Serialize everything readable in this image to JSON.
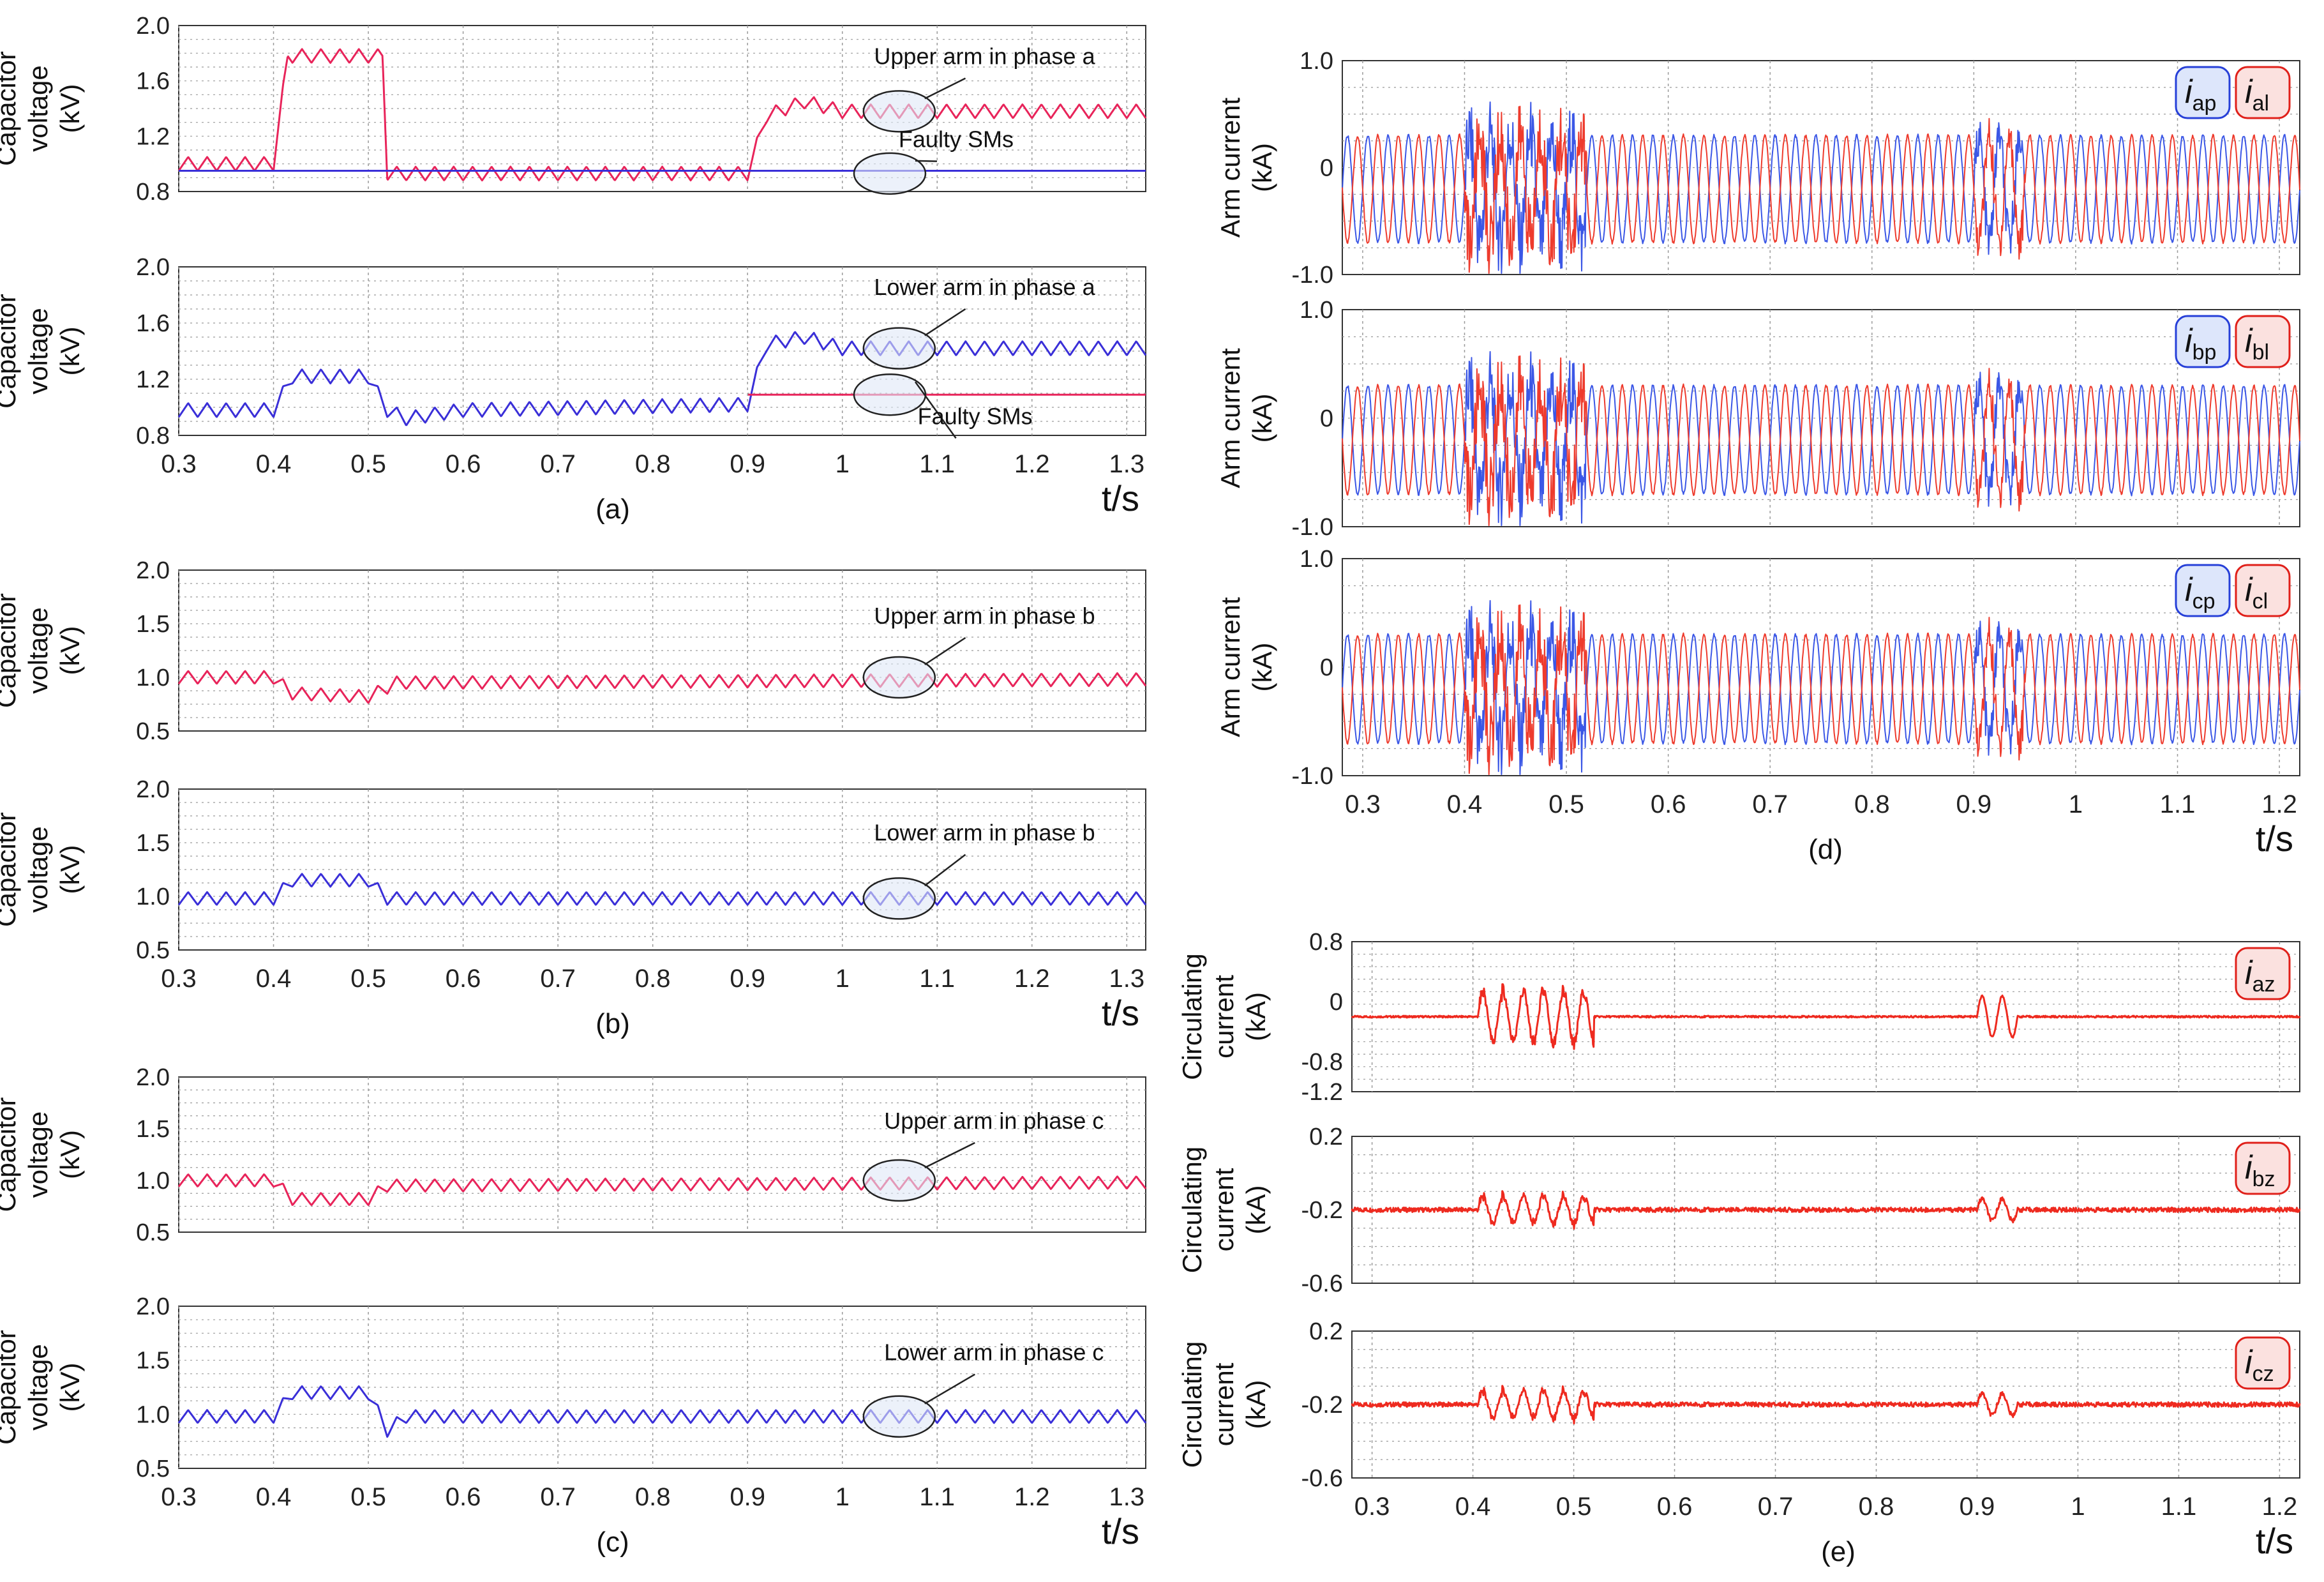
{
  "figure": {
    "colors": {
      "upper": "#e8245a",
      "lower": "#3a2fd8",
      "arm_p": "#3b57e6",
      "arm_l": "#ee3b2d",
      "circ": "#ee2a1f",
      "grid": "#9a9a9a",
      "frame": "#333333",
      "badge_p_fill": "#dde6fb",
      "badge_l_fill": "#fbe1df"
    }
  },
  "chart_data": [
    {
      "id": "a1",
      "type": "line",
      "panel": "(a)",
      "ylabel_lines": [
        "Capacitor",
        "voltage",
        "(kV)"
      ],
      "xlim": [
        0.3,
        1.32
      ],
      "ylim": [
        0.8,
        2.0
      ],
      "yticks": [
        "0.8",
        "1.2",
        "1.6",
        "2.0"
      ],
      "ytick_values": [
        0.8,
        1.2,
        1.6,
        2.0
      ],
      "series": [
        {
          "name": "Upper arm in phase a",
          "color": "upper",
          "base": [
            [
              0.3,
              1.0
            ],
            [
              0.4,
              1.0
            ],
            [
              0.415,
              1.78
            ],
            [
              0.515,
              1.78
            ],
            [
              0.52,
              0.93
            ],
            [
              0.9,
              0.93
            ],
            [
              0.92,
              1.35
            ],
            [
              0.96,
              1.45
            ],
            [
              1.0,
              1.38
            ],
            [
              1.32,
              1.38
            ]
          ],
          "ripple": 0.1,
          "freq": 50,
          "bumps": [
            [
              0.44,
              0.12
            ],
            [
              0.47,
              0.12
            ]
          ]
        },
        {
          "name": "Faulty SMs",
          "color": "lower",
          "base": [
            [
              0.3,
              0.95
            ],
            [
              1.32,
              0.95
            ]
          ],
          "ripple": 0,
          "freq": 0
        }
      ],
      "annotations": [
        {
          "text": "Upper arm in phase a",
          "t": 1.06,
          "v": 1.38,
          "tx": 1.15,
          "ty": 1.72
        },
        {
          "text": "Faulty SMs",
          "t": 1.05,
          "v": 0.93,
          "tx": 1.12,
          "ty": 1.12
        }
      ],
      "xticks": [],
      "xlabel": "",
      "caption": ""
    },
    {
      "id": "a2",
      "type": "line",
      "panel": "(a)",
      "ylabel_lines": [
        "Capacitor",
        "voltage",
        "(kV)"
      ],
      "xlim": [
        0.3,
        1.32
      ],
      "ylim": [
        0.8,
        2.0
      ],
      "yticks": [
        "0.8",
        "1.2",
        "1.6",
        "2.0"
      ],
      "ytick_values": [
        0.8,
        1.2,
        1.6,
        2.0
      ],
      "series": [
        {
          "name": "Lower arm in phase a",
          "color": "lower",
          "base": [
            [
              0.3,
              0.98
            ],
            [
              0.4,
              0.98
            ],
            [
              0.42,
              1.22
            ],
            [
              0.5,
              1.22
            ],
            [
              0.52,
              0.98
            ],
            [
              0.54,
              0.92
            ],
            [
              0.6,
              0.98
            ],
            [
              0.9,
              1.02
            ],
            [
              0.92,
              1.45
            ],
            [
              0.96,
              1.5
            ],
            [
              1.0,
              1.42
            ],
            [
              1.32,
              1.42
            ]
          ],
          "ripple": 0.1,
          "freq": 50,
          "bumps": []
        },
        {
          "name": "Faulty SMs",
          "color": "upper",
          "base": [
            [
              0.9,
              1.09
            ],
            [
              1.32,
              1.09
            ]
          ],
          "ripple": 0,
          "freq": 0
        }
      ],
      "annotations": [
        {
          "text": "Lower arm in phase a",
          "t": 1.06,
          "v": 1.42,
          "tx": 1.15,
          "ty": 1.8
        },
        {
          "text": "Faulty SMs",
          "t": 1.05,
          "v": 1.09,
          "tx": 1.14,
          "ty": 0.88
        }
      ],
      "xticks": [
        "0.3",
        "0.4",
        "0.5",
        "0.6",
        "0.7",
        "0.8",
        "0.9",
        "1",
        "1.1",
        "1.2",
        "1.3"
      ],
      "xtick_values": [
        0.3,
        0.4,
        0.5,
        0.6,
        0.7,
        0.8,
        0.9,
        1.0,
        1.1,
        1.2,
        1.3
      ],
      "xlabel": "t/s",
      "caption": "(a)"
    },
    {
      "id": "b1",
      "type": "line",
      "panel": "(b)",
      "ylabel_lines": [
        "Capacitor",
        "voltage",
        "(kV)"
      ],
      "xlim": [
        0.3,
        1.32
      ],
      "ylim": [
        0.5,
        2.0
      ],
      "yticks": [
        "0.5",
        "1.0",
        "1.5",
        "2.0"
      ],
      "ytick_values": [
        0.5,
        1.0,
        1.5,
        2.0
      ],
      "series": [
        {
          "name": "Upper arm in phase b",
          "color": "upper",
          "base": [
            [
              0.3,
              1.0
            ],
            [
              0.4,
              1.0
            ],
            [
              0.42,
              0.85
            ],
            [
              0.5,
              0.82
            ],
            [
              0.53,
              0.95
            ],
            [
              1.32,
              0.98
            ]
          ],
          "ripple": 0.12,
          "freq": 50,
          "bumps": []
        }
      ],
      "annotations": [
        {
          "text": "Upper arm in phase b",
          "t": 1.06,
          "v": 1.0,
          "tx": 1.15,
          "ty": 1.5
        }
      ],
      "xticks": [],
      "xlabel": "",
      "caption": ""
    },
    {
      "id": "b2",
      "type": "line",
      "panel": "(b)",
      "ylabel_lines": [
        "Capacitor",
        "voltage",
        "(kV)"
      ],
      "xlim": [
        0.3,
        1.32
      ],
      "ylim": [
        0.5,
        2.0
      ],
      "yticks": [
        "0.5",
        "1.0",
        "1.5",
        "2.0"
      ],
      "ytick_values": [
        0.5,
        1.0,
        1.5,
        2.0
      ],
      "series": [
        {
          "name": "Lower arm in phase b",
          "color": "lower",
          "base": [
            [
              0.3,
              0.98
            ],
            [
              0.4,
              0.98
            ],
            [
              0.42,
              1.15
            ],
            [
              0.5,
              1.15
            ],
            [
              0.52,
              0.98
            ],
            [
              1.32,
              0.98
            ]
          ],
          "ripple": 0.12,
          "freq": 50,
          "bumps": []
        }
      ],
      "annotations": [
        {
          "text": "Lower arm in phase b",
          "t": 1.06,
          "v": 0.98,
          "tx": 1.15,
          "ty": 1.52
        }
      ],
      "xticks": [
        "0.3",
        "0.4",
        "0.5",
        "0.6",
        "0.7",
        "0.8",
        "0.9",
        "1",
        "1.1",
        "1.2",
        "1.3"
      ],
      "xtick_values": [
        0.3,
        0.4,
        0.5,
        0.6,
        0.7,
        0.8,
        0.9,
        1.0,
        1.1,
        1.2,
        1.3
      ],
      "xlabel": "t/s",
      "caption": "(b)"
    },
    {
      "id": "c1",
      "type": "line",
      "panel": "(c)",
      "ylabel_lines": [
        "Capacitor",
        "voltage",
        "(kV)"
      ],
      "xlim": [
        0.3,
        1.32
      ],
      "ylim": [
        0.5,
        2.0
      ],
      "yticks": [
        "0.5",
        "1.0",
        "1.5",
        "2.0"
      ],
      "ytick_values": [
        0.5,
        1.0,
        1.5,
        2.0
      ],
      "series": [
        {
          "name": "Upper arm in phase c",
          "color": "upper",
          "base": [
            [
              0.3,
              1.0
            ],
            [
              0.4,
              1.0
            ],
            [
              0.42,
              0.82
            ],
            [
              0.5,
              0.82
            ],
            [
              0.52,
              0.95
            ],
            [
              1.32,
              0.98
            ]
          ],
          "ripple": 0.12,
          "freq": 50,
          "bumps": []
        }
      ],
      "annotations": [
        {
          "text": "Upper arm in phase c",
          "t": 1.06,
          "v": 1.0,
          "tx": 1.16,
          "ty": 1.5
        }
      ],
      "xticks": [],
      "xlabel": "",
      "caption": ""
    },
    {
      "id": "c2",
      "type": "line",
      "panel": "(c)",
      "ylabel_lines": [
        "Capacitor",
        "voltage",
        "(kV)"
      ],
      "xlim": [
        0.3,
        1.32
      ],
      "ylim": [
        0.5,
        2.0
      ],
      "yticks": [
        "0.5",
        "1.0",
        "1.5",
        "2.0"
      ],
      "ytick_values": [
        0.5,
        1.0,
        1.5,
        2.0
      ],
      "series": [
        {
          "name": "Lower arm in phase c",
          "color": "lower",
          "base": [
            [
              0.3,
              0.98
            ],
            [
              0.4,
              0.98
            ],
            [
              0.42,
              1.2
            ],
            [
              0.5,
              1.2
            ],
            [
              0.52,
              0.85
            ],
            [
              0.54,
              0.98
            ],
            [
              1.32,
              0.98
            ]
          ],
          "ripple": 0.12,
          "freq": 50,
          "bumps": []
        }
      ],
      "annotations": [
        {
          "text": "Lower arm in phase c",
          "t": 1.06,
          "v": 0.98,
          "tx": 1.16,
          "ty": 1.5
        }
      ],
      "xticks": [
        "0.3",
        "0.4",
        "0.5",
        "0.6",
        "0.7",
        "0.8",
        "0.9",
        "1",
        "1.1",
        "1.2",
        "1.3"
      ],
      "xtick_values": [
        0.3,
        0.4,
        0.5,
        0.6,
        0.7,
        0.8,
        0.9,
        1.0,
        1.1,
        1.2,
        1.3
      ],
      "xlabel": "t/s",
      "caption": "(c)"
    },
    {
      "id": "d1",
      "type": "line",
      "panel": "(d)",
      "ylabel_lines": [
        "Arm current",
        "(kA)"
      ],
      "xlim": [
        0.28,
        1.22
      ],
      "ylim": [
        -1.0,
        1.0
      ],
      "yticks": [
        "-1.0",
        "0",
        "1.0"
      ],
      "ytick_values": [
        -1.0,
        0,
        1.0
      ],
      "series": [
        {
          "name": "i_ap",
          "color": "arm_p",
          "kind": "ac",
          "offset": -0.2,
          "amp": 0.5,
          "freq": 50,
          "phase": 0
        },
        {
          "name": "i_al",
          "color": "arm_l",
          "kind": "ac",
          "offset": -0.2,
          "amp": 0.5,
          "freq": 50,
          "phase": 3.14
        }
      ],
      "badges": [
        {
          "sym": "i",
          "sub": "ap",
          "style": "p"
        },
        {
          "sym": "i",
          "sub": "al",
          "style": "l"
        }
      ],
      "xticks": [],
      "xlabel": "",
      "caption": ""
    },
    {
      "id": "d2",
      "type": "line",
      "panel": "(d)",
      "ylabel_lines": [
        "Arm current",
        "(kA)"
      ],
      "xlim": [
        0.28,
        1.22
      ],
      "ylim": [
        -1.0,
        1.0
      ],
      "yticks": [
        "-1.0",
        "0",
        "1.0"
      ],
      "ytick_values": [
        -1.0,
        0,
        1.0
      ],
      "series": [
        {
          "name": "i_bp",
          "color": "arm_p",
          "kind": "ac",
          "offset": -0.2,
          "amp": 0.5,
          "freq": 50,
          "phase": 0
        },
        {
          "name": "i_bl",
          "color": "arm_l",
          "kind": "ac",
          "offset": -0.2,
          "amp": 0.5,
          "freq": 50,
          "phase": 3.14
        }
      ],
      "badges": [
        {
          "sym": "i",
          "sub": "bp",
          "style": "p"
        },
        {
          "sym": "i",
          "sub": "bl",
          "style": "l"
        }
      ],
      "xticks": [],
      "xlabel": "",
      "caption": ""
    },
    {
      "id": "d3",
      "type": "line",
      "panel": "(d)",
      "ylabel_lines": [
        "Arm current",
        "(kA)"
      ],
      "xlim": [
        0.28,
        1.22
      ],
      "ylim": [
        -1.0,
        1.0
      ],
      "yticks": [
        "-1.0",
        "0",
        "1.0"
      ],
      "ytick_values": [
        -1.0,
        0,
        1.0
      ],
      "series": [
        {
          "name": "i_cp",
          "color": "arm_p",
          "kind": "ac",
          "offset": -0.2,
          "amp": 0.5,
          "freq": 50,
          "phase": 0
        },
        {
          "name": "i_cl",
          "color": "arm_l",
          "kind": "ac",
          "offset": -0.2,
          "amp": 0.5,
          "freq": 50,
          "phase": 3.14
        }
      ],
      "badges": [
        {
          "sym": "i",
          "sub": "cp",
          "style": "p"
        },
        {
          "sym": "i",
          "sub": "cl",
          "style": "l"
        }
      ],
      "xticks": [
        "0.3",
        "0.4",
        "0.5",
        "0.6",
        "0.7",
        "0.8",
        "0.9",
        "1",
        "1.1",
        "1.2"
      ],
      "xtick_values": [
        0.3,
        0.4,
        0.5,
        0.6,
        0.7,
        0.8,
        0.9,
        1.0,
        1.1,
        1.2
      ],
      "xlabel": "t/s",
      "caption": "(d)"
    },
    {
      "id": "e1",
      "type": "line",
      "panel": "(e)",
      "ylabel_lines": [
        "Circulating",
        "current",
        "(kA)"
      ],
      "xlim": [
        0.28,
        1.22
      ],
      "ylim": [
        -1.2,
        0.8
      ],
      "yticks": [
        "-1.2",
        "-0.8",
        "0",
        "0.8"
      ],
      "ytick_values": [
        -1.2,
        -0.8,
        0,
        0.8
      ],
      "series": [
        {
          "name": "i_az",
          "color": "circ",
          "kind": "circ",
          "level": -0.2,
          "dist": 0.55,
          "freq": 50
        }
      ],
      "badges": [
        {
          "sym": "i",
          "sub": "az",
          "style": "l"
        }
      ],
      "xticks": [],
      "xlabel": "",
      "caption": ""
    },
    {
      "id": "e2",
      "type": "line",
      "panel": "(e)",
      "ylabel_lines": [
        "Circulating",
        "current",
        "(kA)"
      ],
      "xlim": [
        0.28,
        1.22
      ],
      "ylim": [
        -0.6,
        0.2
      ],
      "yticks": [
        "-0.6",
        "-0.2",
        "0.2"
      ],
      "ytick_values": [
        -0.6,
        -0.2,
        0.2
      ],
      "series": [
        {
          "name": "i_bz",
          "color": "circ",
          "kind": "circ",
          "level": -0.2,
          "dist": 0.12,
          "freq": 50
        }
      ],
      "badges": [
        {
          "sym": "i",
          "sub": "bz",
          "style": "l"
        }
      ],
      "xticks": [],
      "xlabel": "",
      "caption": ""
    },
    {
      "id": "e3",
      "type": "line",
      "panel": "(e)",
      "ylabel_lines": [
        "Circulating",
        "current",
        "(kA)"
      ],
      "xlim": [
        0.28,
        1.22
      ],
      "ylim": [
        -0.6,
        0.2
      ],
      "yticks": [
        "-0.6",
        "-0.2",
        "0.2"
      ],
      "ytick_values": [
        -0.6,
        -0.2,
        0.2
      ],
      "series": [
        {
          "name": "i_cz",
          "color": "circ",
          "kind": "circ",
          "level": -0.2,
          "dist": 0.12,
          "freq": 50
        }
      ],
      "badges": [
        {
          "sym": "i",
          "sub": "cz",
          "style": "l"
        }
      ],
      "xticks": [
        "0.3",
        "0.4",
        "0.5",
        "0.6",
        "0.7",
        "0.8",
        "0.9",
        "1",
        "1.1",
        "1.2"
      ],
      "xtick_values": [
        0.3,
        0.4,
        0.5,
        0.6,
        0.7,
        0.8,
        0.9,
        1.0,
        1.1,
        1.2
      ],
      "xlabel": "t/s",
      "caption": "(e)"
    }
  ]
}
